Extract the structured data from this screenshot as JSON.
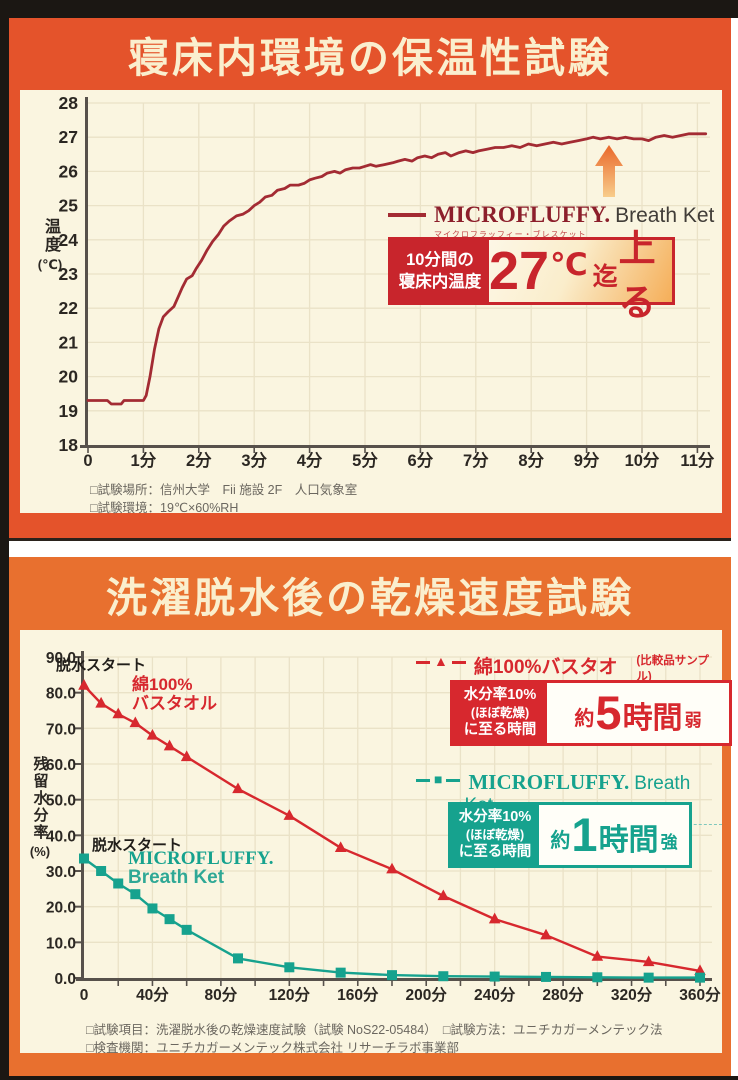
{
  "panel1": {
    "title": "寝床内環境の保温性試験",
    "ylabel_main": "温度",
    "ylabel_unit": "(℃)",
    "legend": {
      "brand": "MICROFLUFFY.",
      "product": "Breath Ket",
      "reading": "マイクロフラッフィー・ブレスケット"
    },
    "badge": {
      "line1": "10分間の",
      "line2": "寝床内温度",
      "num": "27",
      "unit": "℃",
      "suffix_small": "迄",
      "suffix_big": "上る"
    },
    "notes": [
      "□試験場所：信州大学　Fii 施設 2F　人口気象室",
      "□試験環境：19℃×60%RH"
    ]
  },
  "panel2": {
    "title": "洗濯脱水後の乾燥速度試験",
    "ylabel_main": "残留水分率",
    "ylabel_unit": "(%)",
    "ann_red_start": "脱水スタート",
    "ann_red_name1": "綿100%",
    "ann_red_name2": "バスタオル",
    "ann_teal_start": "脱水スタート",
    "ann_teal_name1": "MICROFLUFFY.",
    "ann_teal_name2": "Breath Ket",
    "legend_red": {
      "name": "綿100%バスタオル",
      "note": "(比較品サンプル)"
    },
    "legend_teal": {
      "brand": "MICROFLUFFY.",
      "product": "Breath Ket",
      "reading": "マイクロフラッフィー・ブレスケット"
    },
    "badge_red": {
      "line1": "水分率10%",
      "line2": "(ほぼ乾燥)",
      "line3": "に至る時間",
      "prefix": "約",
      "num": "5",
      "unit": "時間",
      "suffix": "弱"
    },
    "badge_teal": {
      "line1": "水分率10%",
      "line2": "(ほぼ乾燥)",
      "line3": "に至る時間",
      "prefix": "約",
      "num": "1",
      "unit": "時間",
      "suffix": "強"
    },
    "notes": [
      "□試験項目：洗濯脱水後の乾燥速度試験（試験 NoS22-05484）　□試験方法：ユニチカガーメンテック法",
      "□検査機関：ユニチカガーメンテック株式会社 リサーチラボ事業部"
    ]
  },
  "colors": {
    "panel1_orange": "#e4532b",
    "panel2_orange": "#e8702f",
    "cream_bg": "#faf5e0",
    "grid": "#eae2c7",
    "axis": "#57514b",
    "chart1_line": "#a32b33",
    "red_series": "#d7282e",
    "teal_series": "#16a28e",
    "badge_red": "#c8252c",
    "title_text": "#faefce"
  },
  "chart_data": [
    {
      "id": "c1",
      "type": "line",
      "title": "寝床内環境の保温性試験",
      "ylabel": "温度(℃)",
      "xlim": [
        0,
        11.3
      ],
      "ylim": [
        18,
        28
      ],
      "grid": true,
      "x_ticks": {
        "values": [
          0,
          1,
          2,
          3,
          4,
          5,
          6,
          7,
          8,
          9,
          10,
          11
        ],
        "labels": [
          "0",
          "1分",
          "2分",
          "3分",
          "4分",
          "5分",
          "6分",
          "7分",
          "8分",
          "9分",
          "10分",
          "11分"
        ]
      },
      "y_ticks": {
        "values": [
          18,
          19,
          20,
          21,
          22,
          23,
          24,
          25,
          26,
          27,
          28
        ],
        "labels": [
          "18",
          "19",
          "20",
          "21",
          "22",
          "23",
          "24",
          "25",
          "26",
          "27",
          "28"
        ]
      },
      "series": [
        {
          "name": "MICROFLUFFY. Breath Ket",
          "color": "#a32b33",
          "marker": "none",
          "points": [
            [
              0,
              19.3
            ],
            [
              0.35,
              19.3
            ],
            [
              0.42,
              19.2
            ],
            [
              0.6,
              19.2
            ],
            [
              0.65,
              19.3
            ],
            [
              1.0,
              19.3
            ],
            [
              1.05,
              19.45
            ],
            [
              1.12,
              20.0
            ],
            [
              1.2,
              20.8
            ],
            [
              1.28,
              21.4
            ],
            [
              1.36,
              21.75
            ],
            [
              1.45,
              21.9
            ],
            [
              1.55,
              22.05
            ],
            [
              1.62,
              22.3
            ],
            [
              1.7,
              22.6
            ],
            [
              1.78,
              22.85
            ],
            [
              1.88,
              22.95
            ],
            [
              1.95,
              23.15
            ],
            [
              2.05,
              23.4
            ],
            [
              2.15,
              23.7
            ],
            [
              2.25,
              23.95
            ],
            [
              2.35,
              24.15
            ],
            [
              2.45,
              24.4
            ],
            [
              2.55,
              24.55
            ],
            [
              2.68,
              24.7
            ],
            [
              2.8,
              24.75
            ],
            [
              2.9,
              24.85
            ],
            [
              3.0,
              25.0
            ],
            [
              3.1,
              25.1
            ],
            [
              3.2,
              25.25
            ],
            [
              3.32,
              25.3
            ],
            [
              3.42,
              25.45
            ],
            [
              3.55,
              25.5
            ],
            [
              3.65,
              25.6
            ],
            [
              3.8,
              25.6
            ],
            [
              3.9,
              25.65
            ],
            [
              4.0,
              25.75
            ],
            [
              4.1,
              25.8
            ],
            [
              4.22,
              25.85
            ],
            [
              4.32,
              25.95
            ],
            [
              4.45,
              26.0
            ],
            [
              4.55,
              25.95
            ],
            [
              4.65,
              26.05
            ],
            [
              4.78,
              26.1
            ],
            [
              4.9,
              26.1
            ],
            [
              5.0,
              26.15
            ],
            [
              5.1,
              26.2
            ],
            [
              5.2,
              26.15
            ],
            [
              5.35,
              26.2
            ],
            [
              5.5,
              26.25
            ],
            [
              5.6,
              26.3
            ],
            [
              5.72,
              26.35
            ],
            [
              5.85,
              26.3
            ],
            [
              5.95,
              26.4
            ],
            [
              6.08,
              26.45
            ],
            [
              6.2,
              26.4
            ],
            [
              6.32,
              26.5
            ],
            [
              6.45,
              26.55
            ],
            [
              6.55,
              26.45
            ],
            [
              6.7,
              26.55
            ],
            [
              6.82,
              26.6
            ],
            [
              6.95,
              26.55
            ],
            [
              7.05,
              26.6
            ],
            [
              7.2,
              26.65
            ],
            [
              7.35,
              26.7
            ],
            [
              7.5,
              26.7
            ],
            [
              7.65,
              26.75
            ],
            [
              7.8,
              26.7
            ],
            [
              7.95,
              26.8
            ],
            [
              8.1,
              26.75
            ],
            [
              8.25,
              26.8
            ],
            [
              8.4,
              26.85
            ],
            [
              8.55,
              26.8
            ],
            [
              8.7,
              26.85
            ],
            [
              8.85,
              26.9
            ],
            [
              9.0,
              26.95
            ],
            [
              9.12,
              27.0
            ],
            [
              9.25,
              26.95
            ],
            [
              9.4,
              27.0
            ],
            [
              9.55,
              26.95
            ],
            [
              9.7,
              27.0
            ],
            [
              9.85,
              26.95
            ],
            [
              10.0,
              26.95
            ],
            [
              10.12,
              26.9
            ],
            [
              10.25,
              27.0
            ],
            [
              10.4,
              27.05
            ],
            [
              10.55,
              27.0
            ],
            [
              10.7,
              27.05
            ],
            [
              10.85,
              27.1
            ],
            [
              11.0,
              27.1
            ],
            [
              11.15,
              27.1
            ]
          ]
        }
      ]
    },
    {
      "id": "c2",
      "type": "line",
      "title": "洗濯脱水後の乾燥速度試験",
      "ylabel": "残留水分率(%)",
      "xlim": [
        0,
        368
      ],
      "ylim": [
        0,
        90
      ],
      "grid": true,
      "x_ticks": {
        "values": [
          0,
          40,
          80,
          120,
          160,
          200,
          240,
          280,
          320,
          360
        ],
        "labels": [
          "0",
          "40分",
          "80分",
          "120分",
          "160分",
          "200分",
          "240分",
          "280分",
          "320分",
          "360分"
        ],
        "minor_values": [
          20,
          40,
          60,
          80,
          100,
          120,
          140,
          160,
          180,
          200,
          220,
          240,
          260,
          280,
          300,
          320,
          340,
          360
        ]
      },
      "y_ticks": {
        "values": [
          0,
          10,
          20,
          30,
          40,
          50,
          60,
          70,
          80,
          90
        ],
        "labels": [
          "0.0",
          "10.0",
          "20.0",
          "30.0",
          "40.0",
          "50.0",
          "60.0",
          "70.0",
          "80.0",
          "90.0"
        ]
      },
      "series": [
        {
          "name": "綿100%バスタオル(比較品サンプル)",
          "color": "#d7282e",
          "marker": "triangle",
          "points": [
            [
              0,
              82
            ],
            [
              10,
              77
            ],
            [
              20,
              74
            ],
            [
              30,
              71.5
            ],
            [
              40,
              68
            ],
            [
              50,
              65
            ],
            [
              60,
              62
            ],
            [
              90,
              53
            ],
            [
              120,
              45.5
            ],
            [
              150,
              36.5
            ],
            [
              180,
              30.5
            ],
            [
              210,
              23
            ],
            [
              240,
              16.5
            ],
            [
              270,
              12
            ],
            [
              300,
              6
            ],
            [
              330,
              4.5
            ],
            [
              360,
              2
            ]
          ]
        },
        {
          "name": "MICROFLUFFY. Breath Ket",
          "color": "#16a28e",
          "marker": "square",
          "points": [
            [
              0,
              33.5
            ],
            [
              10,
              30
            ],
            [
              20,
              26.5
            ],
            [
              30,
              23.5
            ],
            [
              40,
              19.5
            ],
            [
              50,
              16.5
            ],
            [
              60,
              13.5
            ],
            [
              90,
              5.5
            ],
            [
              120,
              3
            ],
            [
              150,
              1.5
            ],
            [
              180,
              0.8
            ],
            [
              210,
              0.5
            ],
            [
              240,
              0.4
            ],
            [
              270,
              0.3
            ],
            [
              300,
              0.2
            ],
            [
              330,
              0.1
            ],
            [
              360,
              0.1
            ]
          ]
        }
      ]
    }
  ]
}
